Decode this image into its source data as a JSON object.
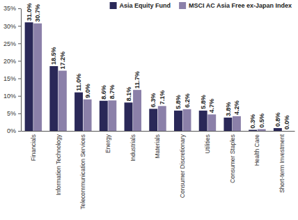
{
  "chart_data": {
    "type": "bar",
    "categories": [
      "Financials",
      "Information Technology",
      "Telecommunication Services",
      "Energy",
      "Industrials",
      "Materials",
      "Consumer Discretionary",
      "Utilities",
      "Consumer Staples",
      "Health Care",
      "Short-term Investment"
    ],
    "series": [
      {
        "name": "Asia Equity Fund",
        "color": "#2a2858",
        "values": [
          31.0,
          18.5,
          11.0,
          8.6,
          8.1,
          6.3,
          5.8,
          5.8,
          3.8,
          0.3,
          0.8
        ],
        "value_labels": [
          "31.0%",
          "18.5%",
          "11.0%",
          "8.6%",
          "8.1%",
          "6.3%",
          "5.8%",
          "5.8%",
          "3.8%",
          "0.3%",
          "0.8%"
        ]
      },
      {
        "name": "MSCI AC Asia Free ex-Japan Index",
        "color": "#8b80a9",
        "values": [
          30.7,
          17.2,
          9.0,
          8.7,
          11.7,
          7.1,
          6.2,
          4.7,
          4.2,
          0.5,
          0.0
        ],
        "value_labels": [
          "30.7%",
          "17.2%",
          "9.0%",
          "8.7%",
          "11.7%",
          "7.1%",
          "6.2%",
          "4.7%",
          "4.2%",
          "0.5%",
          "0.0%"
        ]
      }
    ],
    "ylim": [
      0,
      35
    ],
    "yticks": [
      {
        "value": 0,
        "label": "0%"
      },
      {
        "value": 5,
        "label": "5%"
      },
      {
        "value": 10,
        "label": "10%"
      },
      {
        "value": 15,
        "label": "15%"
      },
      {
        "value": 20,
        "label": "20%"
      },
      {
        "value": 25,
        "label": "25%"
      },
      {
        "value": 30,
        "label": "30%"
      },
      {
        "value": 35,
        "label": "35%"
      }
    ],
    "grid": false,
    "legend": "top-right",
    "data_labels": true
  }
}
